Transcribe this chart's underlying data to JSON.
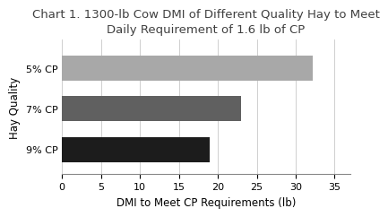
{
  "title": "Chart 1. 1300-lb Cow DMI of Different Quality Hay to Meet\nDaily Requirement of 1.6 lb of CP",
  "categories": [
    "9% CP",
    "7% CP",
    "5% CP"
  ],
  "values": [
    19.0,
    23.0,
    32.2
  ],
  "bar_colors": [
    "#1c1c1c",
    "#606060",
    "#a8a8a8"
  ],
  "xlabel": "DMI to Meet CP Requirements (lb)",
  "ylabel": "Hay Quality",
  "xlim": [
    0,
    37
  ],
  "xticks": [
    0,
    5,
    10,
    15,
    20,
    25,
    30,
    35
  ],
  "title_fontsize": 9.5,
  "axis_label_fontsize": 8.5,
  "tick_fontsize": 8,
  "ylabel_fontsize": 8.5,
  "background_color": "#ffffff",
  "grid_color": "#c8c8c8",
  "bar_height": 0.62,
  "title_color": "#404040",
  "spine_color": "#888888"
}
